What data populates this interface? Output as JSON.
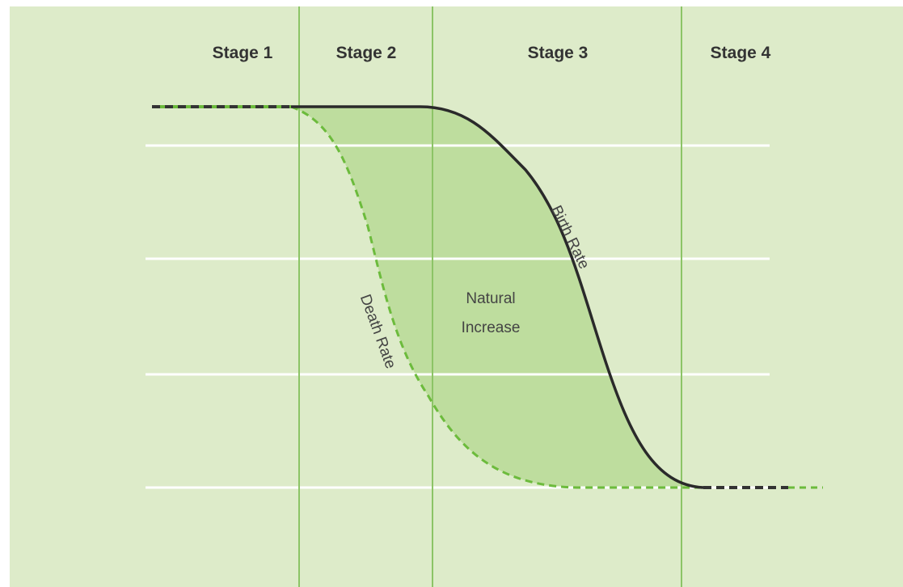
{
  "stages": [
    "Stage 1",
    "Stage 2",
    "Stage 3",
    "Stage 4"
  ],
  "labels": {
    "birth_rate": "Birth Rate",
    "death_rate": "Death Rate",
    "natural_increase": [
      "Natural",
      "Increase"
    ]
  }
}
